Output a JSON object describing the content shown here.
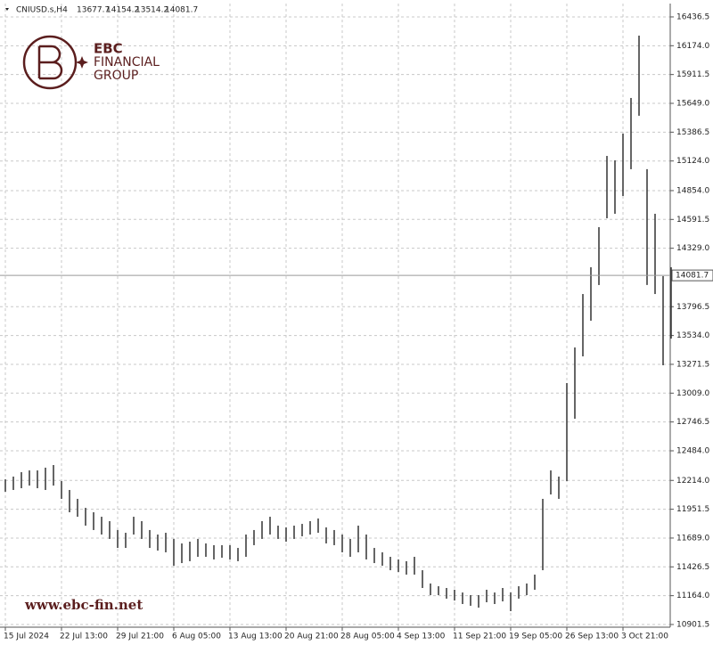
{
  "chart_data": {
    "type": "ohlc",
    "title": "CNIUSD.s,H4",
    "last_bar": {
      "open": 13677.7,
      "high": 14154.2,
      "low": 13514.2,
      "close": 14081.7
    },
    "logo": {
      "name": "EBC",
      "line1": "FINANCIAL",
      "line2": "GROUP"
    },
    "watermark": "www.ebc-fin.net",
    "color": "#333333",
    "grid": true,
    "categories": [
      "15 Jul 2024",
      null,
      null,
      null,
      null,
      null,
      null,
      "22 Jul 13:00",
      null,
      null,
      null,
      null,
      null,
      null,
      "29 Jul 21:00",
      null,
      null,
      null,
      null,
      null,
      null,
      "6 Aug 05:00",
      null,
      null,
      null,
      null,
      null,
      null,
      "13 Aug 13:00",
      null,
      null,
      null,
      null,
      null,
      null,
      "20 Aug 21:00",
      null,
      null,
      null,
      null,
      null,
      null,
      "28 Aug 05:00",
      null,
      null,
      null,
      null,
      null,
      null,
      "4 Sep 13:00",
      null,
      null,
      null,
      null,
      null,
      null,
      "11 Sep 21:00",
      null,
      null,
      null,
      null,
      null,
      null,
      "19 Sep 05:00",
      null,
      null,
      null,
      null,
      null,
      null,
      "26 Sep 13:00",
      null,
      null,
      null,
      null,
      null,
      null,
      "3 Oct 21:00",
      null,
      null,
      null,
      null,
      null,
      null
    ],
    "high": [
      12224,
      12249,
      12289,
      12305,
      12305,
      12330,
      12354,
      12208,
      12127,
      12046,
      11964,
      11924,
      11883,
      11843,
      11762,
      11737,
      11883,
      11843,
      11762,
      11721,
      11737,
      11681,
      11640,
      11656,
      11681,
      11640,
      11624,
      11624,
      11624,
      11599,
      11721,
      11762,
      11843,
      11883,
      11802,
      11786,
      11802,
      11818,
      11843,
      11867,
      11786,
      11762,
      11721,
      11681,
      11802,
      11721,
      11599,
      11559,
      11518,
      11494,
      11478,
      11518,
      11396,
      11275,
      11250,
      11234,
      11218,
      11193,
      11169,
      11169,
      11218,
      11193,
      11234,
      11193,
      11250,
      11275,
      11356,
      12046,
      12305,
      12249,
      13101,
      13425,
      13912,
      14156,
      14521,
      15170,
      15130,
      15373,
      15698,
      16266,
      15049,
      14643,
      14075,
      14156
    ],
    "low": [
      12111,
      12127,
      12143,
      12167,
      12143,
      12127,
      12167,
      12046,
      11924,
      11883,
      11802,
      11762,
      11721,
      11681,
      11599,
      11599,
      11721,
      11681,
      11599,
      11575,
      11559,
      11437,
      11461,
      11478,
      11518,
      11518,
      11494,
      11510,
      11494,
      11478,
      11518,
      11624,
      11681,
      11721,
      11681,
      11656,
      11681,
      11705,
      11721,
      11737,
      11640,
      11624,
      11559,
      11518,
      11559,
      11494,
      11461,
      11437,
      11396,
      11380,
      11356,
      11356,
      11234,
      11169,
      11169,
      11137,
      11120,
      11088,
      11072,
      11055,
      11104,
      11088,
      11112,
      11023,
      11137,
      11169,
      11218,
      11396,
      12086,
      12046,
      12208,
      12776,
      13344,
      13669,
      13994,
      14602,
      14643,
      14805,
      15049,
      15536,
      13994,
      13912,
      13263,
      13506
    ],
    "ylim": [
      10877,
      16558
    ],
    "yticks": [
      16436.5,
      {
        "value": 16174,
        "label": "16174.0"
      },
      15911.5,
      {
        "value": 15649,
        "label": "15649.0"
      },
      15386.5,
      {
        "value": 15124,
        "label": "15124.0"
      },
      {
        "value": 14854,
        "label": "14854.0"
      },
      14591.5,
      {
        "value": 14329,
        "label": "14329.0"
      },
      13796.5,
      {
        "value": 13534,
        "label": "13534.0"
      },
      13271.5,
      {
        "value": 13009,
        "label": "13009.0"
      },
      12746.5,
      {
        "value": 12484,
        "label": "12484.0"
      },
      {
        "value": 12214,
        "label": "12214.0"
      },
      11951.5,
      {
        "value": 11689,
        "label": "11689.0"
      },
      11426.5,
      {
        "value": 11164,
        "label": "11164.0"
      },
      10901.5
    ]
  }
}
